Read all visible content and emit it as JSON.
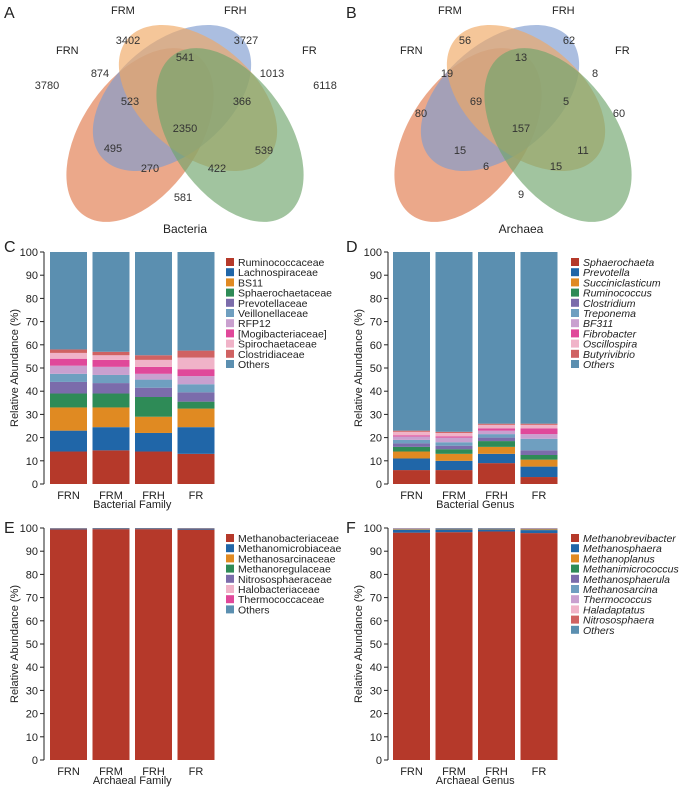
{
  "panels": {
    "A": "A",
    "B": "B",
    "C": "C",
    "D": "D",
    "E": "E",
    "F": "F"
  },
  "venn": [
    {
      "caption": "Bacteria",
      "set_labels": {
        "FRN": "FRN",
        "FRM": "FRM",
        "FRH": "FRH",
        "FR": "FR"
      },
      "regions": {
        "FRN_only": "3780",
        "FRM_only": "3402",
        "FRH_only": "3727",
        "FR_only": "6118",
        "FRN_FRM": "874",
        "FRM_FRH": "541",
        "FRH_FR": "1013",
        "FRN_FRH": "495",
        "FRM_FR": "539",
        "FRN_FR": "581",
        "FRN_FRM_FRH": "523",
        "FRM_FRH_FR": "366",
        "FRN_FRH_FR": "270",
        "FRN_FRM_FR": "422",
        "all": "2350"
      }
    },
    {
      "caption": "Archaea",
      "set_labels": {
        "FRN": "FRN",
        "FRM": "FRM",
        "FRH": "FRH",
        "FR": "FR"
      },
      "regions": {
        "FRN_only": "80",
        "FRM_only": "56",
        "FRH_only": "62",
        "FR_only": "60",
        "FRN_FRM": "19",
        "FRM_FRH": "13",
        "FRH_FR": "8",
        "FRN_FRH": "15",
        "FRM_FR": "11",
        "FRN_FR": "9",
        "FRN_FRM_FRH": "69",
        "FRM_FRH_FR": "5",
        "FRN_FRH_FR": "6",
        "FRN_FRM_FR": "15",
        "all": "157"
      }
    }
  ],
  "chart_data": [
    {
      "type": "bar",
      "stacked": true,
      "panel": "C",
      "xlabel": "Bacterial Family",
      "ylabel": "Relative Abundance (%)",
      "ylim": [
        0,
        100
      ],
      "yticks": [
        "0",
        "10",
        "20",
        "30",
        "40",
        "50",
        "60",
        "70",
        "80",
        "90",
        "100"
      ],
      "categories": [
        "FRN",
        "FRM",
        "FRH",
        "FR"
      ],
      "italic_legend": false,
      "series": [
        {
          "name": "Ruminococcaceae",
          "color": "#b5392a",
          "values": [
            14,
            14.5,
            14,
            13
          ]
        },
        {
          "name": "Lachnospiraceae",
          "color": "#2066a8",
          "values": [
            9,
            10,
            8,
            11.5
          ]
        },
        {
          "name": "BS11",
          "color": "#e08a22",
          "values": [
            10,
            8.5,
            7,
            8
          ]
        },
        {
          "name": "Sphaerochaetaceae",
          "color": "#2e8b57",
          "values": [
            6,
            6,
            8.5,
            3
          ]
        },
        {
          "name": "Prevotellaceae",
          "color": "#7b6cab",
          "values": [
            5,
            4.5,
            4,
            4
          ]
        },
        {
          "name": "Veillonellaceae",
          "color": "#6f9fc0",
          "values": [
            3.5,
            3.5,
            3.5,
            3.5
          ]
        },
        {
          "name": "RFP12",
          "color": "#c9a0cf",
          "values": [
            3.5,
            3.5,
            2.5,
            3.5
          ]
        },
        {
          "name": "[Mogibacteriaceae]",
          "color": "#e0489a",
          "values": [
            3,
            3,
            3,
            3
          ]
        },
        {
          "name": "Spirochaetaceae",
          "color": "#f0b3c8",
          "values": [
            2.5,
            2,
            3,
            5
          ]
        },
        {
          "name": "Clostridiaceae",
          "color": "#d06262",
          "values": [
            1.5,
            1.5,
            2,
            3
          ]
        },
        {
          "name": "Others",
          "color": "#5b8fb0",
          "values": [
            42,
            43,
            44.5,
            42.5
          ]
        }
      ]
    },
    {
      "type": "bar",
      "stacked": true,
      "panel": "D",
      "xlabel": "Bacterial Genus",
      "ylabel": "Relative Abundance (%)",
      "ylim": [
        0,
        100
      ],
      "yticks": [
        "0",
        "10",
        "20",
        "30",
        "40",
        "50",
        "60",
        "70",
        "80",
        "90",
        "100"
      ],
      "categories": [
        "FRN",
        "FRM",
        "FRH",
        "FR"
      ],
      "italic_legend": true,
      "series": [
        {
          "name": "Sphaerochaeta",
          "color": "#b5392a",
          "values": [
            6,
            6,
            9,
            3
          ]
        },
        {
          "name": "Prevotella",
          "color": "#2066a8",
          "values": [
            5,
            4,
            4,
            4.5
          ]
        },
        {
          "name": "Succiniclasticum",
          "color": "#e08a22",
          "values": [
            3,
            3,
            3,
            3
          ]
        },
        {
          "name": "Ruminococcus",
          "color": "#2e8b57",
          "values": [
            2,
            2,
            2.5,
            2
          ]
        },
        {
          "name": "Clostridium",
          "color": "#7b6cab",
          "values": [
            1.5,
            1.5,
            1.5,
            2
          ]
        },
        {
          "name": "Treponema",
          "color": "#6f9fc0",
          "values": [
            1.5,
            1.5,
            1.5,
            5
          ]
        },
        {
          "name": "BF311",
          "color": "#c9a0cf",
          "values": [
            1.5,
            2,
            1.5,
            2
          ]
        },
        {
          "name": "Fibrobacter",
          "color": "#e0489a",
          "values": [
            0.5,
            0.5,
            1,
            2.5
          ]
        },
        {
          "name": "Oscillospira",
          "color": "#f0b3c8",
          "values": [
            1.5,
            1.5,
            1.5,
            1.5
          ]
        },
        {
          "name": "Butyrivibrio",
          "color": "#d06262",
          "values": [
            0.5,
            0.5,
            0.5,
            0.5
          ]
        },
        {
          "name": "Others",
          "color": "#5b8fb0",
          "values": [
            77,
            77.5,
            74,
            74
          ]
        }
      ]
    },
    {
      "type": "bar",
      "stacked": true,
      "panel": "E",
      "xlabel": "Archaeal Family",
      "ylabel": "Relative Abundance (%)",
      "ylim": [
        0,
        100
      ],
      "yticks": [
        "0",
        "10",
        "20",
        "30",
        "40",
        "50",
        "60",
        "70",
        "80",
        "90",
        "100"
      ],
      "categories": [
        "FRN",
        "FRM",
        "FRH",
        "FR"
      ],
      "italic_legend": false,
      "series": [
        {
          "name": "Methanobacteriaceae",
          "color": "#b5392a",
          "values": [
            99.4,
            99.5,
            99.5,
            99.3
          ]
        },
        {
          "name": "Methanomicrobiaceae",
          "color": "#2066a8",
          "values": [
            0.3,
            0.3,
            0.3,
            0.4
          ]
        },
        {
          "name": "Methanosarcinaceae",
          "color": "#e08a22",
          "values": [
            0.05,
            0.05,
            0.05,
            0.05
          ]
        },
        {
          "name": "Methanoregulaceae",
          "color": "#2e8b57",
          "values": [
            0.05,
            0.05,
            0.05,
            0.05
          ]
        },
        {
          "name": "Nitrososphaeraceae",
          "color": "#7b6cab",
          "values": [
            0.05,
            0.03,
            0.03,
            0.05
          ]
        },
        {
          "name": "Halobacteriaceae",
          "color": "#f0b3c8",
          "values": [
            0.03,
            0.02,
            0.02,
            0.03
          ]
        },
        {
          "name": "Thermococcaceae",
          "color": "#e0489a",
          "values": [
            0.02,
            0.02,
            0.02,
            0.02
          ]
        },
        {
          "name": "Others",
          "color": "#5b8fb0",
          "values": [
            0.1,
            0.03,
            0.03,
            0.1
          ]
        }
      ]
    },
    {
      "type": "bar",
      "stacked": true,
      "panel": "F",
      "xlabel": "Archaeal Genus",
      "ylabel": "Relative Abundance (%)",
      "ylim": [
        0,
        100
      ],
      "yticks": [
        "0",
        "10",
        "20",
        "30",
        "40",
        "50",
        "60",
        "70",
        "80",
        "90",
        "100"
      ],
      "categories": [
        "FRN",
        "FRM",
        "FRH",
        "FR"
      ],
      "italic_legend": true,
      "series": [
        {
          "name": "Methanobrevibacter",
          "color": "#b5392a",
          "values": [
            98,
            98.2,
            98.5,
            97.8
          ]
        },
        {
          "name": "Methanosphaera",
          "color": "#2066a8",
          "values": [
            1.2,
            1.2,
            0.9,
            1.3
          ]
        },
        {
          "name": "Methanoplanus",
          "color": "#e08a22",
          "values": [
            0.2,
            0.2,
            0.2,
            0.3
          ]
        },
        {
          "name": "Methanimicrococcus",
          "color": "#2e8b57",
          "values": [
            0.1,
            0.1,
            0.1,
            0.1
          ]
        },
        {
          "name": "Methanosphaerula",
          "color": "#7b6cab",
          "values": [
            0.1,
            0.1,
            0.1,
            0.1
          ]
        },
        {
          "name": "Methanosarcina",
          "color": "#6f9fc0",
          "values": [
            0.1,
            0.05,
            0.05,
            0.1
          ]
        },
        {
          "name": "Thermococcus",
          "color": "#c9a0cf",
          "values": [
            0.05,
            0.05,
            0.05,
            0.05
          ]
        },
        {
          "name": "Haladaptatus",
          "color": "#f0b3c8",
          "values": [
            0.05,
            0.03,
            0.03,
            0.05
          ]
        },
        {
          "name": "Nitrososphaera",
          "color": "#d06262",
          "values": [
            0.05,
            0.03,
            0.03,
            0.05
          ]
        },
        {
          "name": "Others",
          "color": "#5b8fb0",
          "values": [
            0.15,
            0.04,
            0.04,
            0.15
          ]
        }
      ]
    }
  ]
}
